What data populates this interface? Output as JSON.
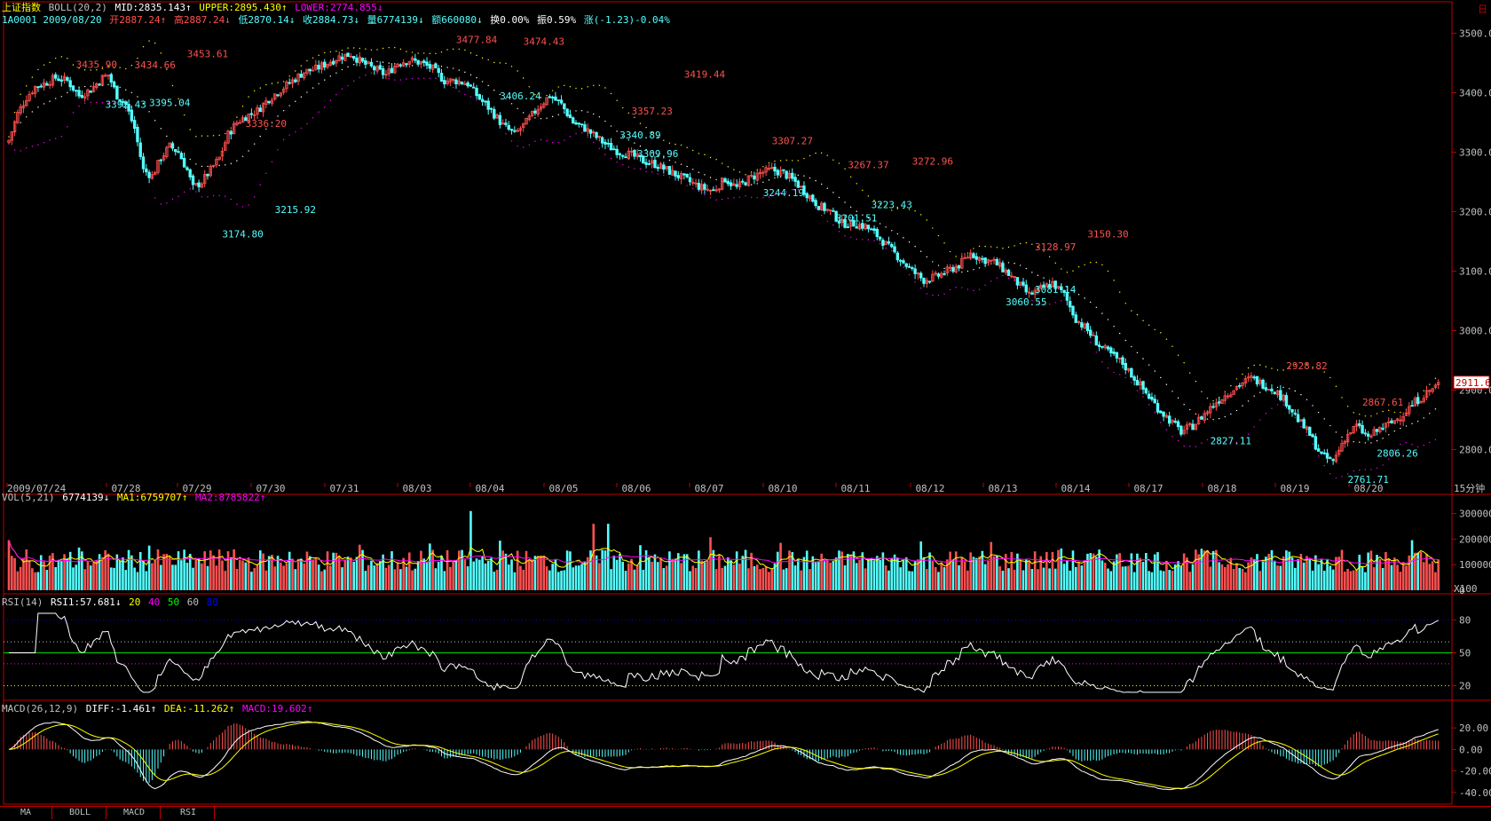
{
  "header": {
    "index_name": "上证指数",
    "boll_label": "BOLL(20,2)",
    "mid": "MID:2835.143↑",
    "upper": "UPPER:2895.430↑",
    "lower": "LOWER:2774.855↓",
    "code_date": "1A0001 2009/08/20",
    "open": "开2887.24↑",
    "high": "高2887.24↓",
    "low": "低2870.14↓",
    "close": "收2884.73↓",
    "volume": "量6774139↓",
    "amount": "额660080↓",
    "turnover": "换0.00%",
    "amplitude": "振0.59%",
    "change": "涨(-1.23)-0.04%"
  },
  "vol_header": {
    "label": "VOL(5,21)",
    "value": "6774139↓",
    "ma1": "MA1:6759707↑",
    "ma2": "MA2:8785822↑"
  },
  "rsi_header": {
    "label": "RSI(14)",
    "rsi1": "RSI1:57.681↓",
    "l20": "20",
    "l40": "40",
    "l50": "50",
    "l60": "60",
    "l80": "80"
  },
  "macd_header": {
    "label": "MACD(26,12,9)",
    "diff": "DIFF:-1.461↑",
    "dea": "DEA:-11.262↑",
    "macd": "MACD:19.602↑"
  },
  "period_label": "15分钟",
  "price_tag": "2911.6",
  "corner_button": "日",
  "vol_unit": "X100",
  "tabs": [
    "MA",
    "BOLL",
    "MACD",
    "RSI"
  ],
  "colors": {
    "up": "#ff5050",
    "down": "#54ffff",
    "mid": "#ffffff",
    "upper": "#ffff00",
    "lower": "#ff00ff",
    "frame": "#c00000"
  },
  "chart_data": [
    {
      "type": "candlestick",
      "panel": "price",
      "title": "上证指数",
      "x_dates": [
        "2009/07/24",
        "07/28",
        "07/29",
        "07/30",
        "07/31",
        "08/03",
        "08/04",
        "08/05",
        "08/06",
        "08/07",
        "08/10",
        "08/11",
        "08/12",
        "08/13",
        "08/14",
        "08/17",
        "08/18",
        "08/19",
        "08/20"
      ],
      "y_ticks": [
        "3500.0",
        "3400.0",
        "3300.0",
        "3200.0",
        "3100.0",
        "3000.0",
        "2900.0",
        "2800.0"
      ],
      "ylim": [
        2750,
        3520
      ],
      "close_path": [
        [
          0,
          3320
        ],
        [
          3,
          3365
        ],
        [
          6,
          3392
        ],
        [
          9,
          3410
        ],
        [
          12,
          3415
        ],
        [
          16,
          3425
        ],
        [
          20,
          3420
        ],
        [
          24,
          3395
        ],
        [
          28,
          3405
        ],
        [
          32,
          3425
        ],
        [
          34,
          3430
        ],
        [
          37,
          3395
        ],
        [
          40,
          3380
        ],
        [
          43,
          3340
        ],
        [
          46,
          3270
        ],
        [
          49,
          3260
        ],
        [
          52,
          3290
        ],
        [
          55,
          3310
        ],
        [
          58,
          3300
        ],
        [
          61,
          3270
        ],
        [
          63,
          3240
        ],
        [
          66,
          3250
        ],
        [
          69,
          3270
        ],
        [
          72,
          3290
        ],
        [
          75,
          3330
        ],
        [
          78,
          3350
        ],
        [
          81,
          3360
        ],
        [
          85,
          3370
        ],
        [
          89,
          3390
        ],
        [
          93,
          3405
        ],
        [
          97,
          3420
        ],
        [
          101,
          3435
        ],
        [
          105,
          3440
        ],
        [
          109,
          3450
        ],
        [
          113,
          3460
        ],
        [
          117,
          3465
        ],
        [
          121,
          3450
        ],
        [
          125,
          3440
        ],
        [
          129,
          3430
        ],
        [
          133,
          3450
        ],
        [
          137,
          3455
        ],
        [
          141,
          3450
        ],
        [
          145,
          3440
        ],
        [
          149,
          3420
        ],
        [
          153,
          3420
        ],
        [
          157,
          3415
        ],
        [
          161,
          3390
        ],
        [
          165,
          3370
        ],
        [
          169,
          3345
        ],
        [
          173,
          3330
        ],
        [
          177,
          3350
        ],
        [
          181,
          3375
        ],
        [
          185,
          3395
        ],
        [
          189,
          3380
        ],
        [
          193,
          3350
        ],
        [
          197,
          3340
        ],
        [
          201,
          3325
        ],
        [
          205,
          3310
        ],
        [
          209,
          3300
        ],
        [
          213,
          3295
        ],
        [
          217,
          3285
        ],
        [
          221,
          3280
        ],
        [
          225,
          3270
        ],
        [
          229,
          3260
        ],
        [
          233,
          3250
        ],
        [
          237,
          3240
        ],
        [
          241,
          3235
        ],
        [
          245,
          3255
        ],
        [
          249,
          3240
        ],
        [
          253,
          3255
        ],
        [
          257,
          3265
        ],
        [
          261,
          3270
        ],
        [
          265,
          3265
        ],
        [
          269,
          3250
        ],
        [
          273,
          3230
        ],
        [
          277,
          3210
        ],
        [
          281,
          3200
        ],
        [
          285,
          3180
        ],
        [
          289,
          3180
        ],
        [
          293,
          3175
        ],
        [
          297,
          3160
        ],
        [
          301,
          3140
        ],
        [
          305,
          3120
        ],
        [
          309,
          3100
        ],
        [
          313,
          3085
        ],
        [
          317,
          3090
        ],
        [
          321,
          3100
        ],
        [
          325,
          3110
        ],
        [
          329,
          3130
        ],
        [
          333,
          3120
        ],
        [
          337,
          3115
        ],
        [
          341,
          3100
        ],
        [
          345,
          3080
        ],
        [
          349,
          3060
        ],
        [
          353,
          3070
        ],
        [
          357,
          3080
        ],
        [
          361,
          3060
        ],
        [
          365,
          3020
        ],
        [
          369,
          3000
        ],
        [
          373,
          2975
        ],
        [
          377,
          2960
        ],
        [
          381,
          2945
        ],
        [
          385,
          2920
        ],
        [
          389,
          2895
        ],
        [
          393,
          2870
        ],
        [
          397,
          2850
        ],
        [
          401,
          2830
        ],
        [
          405,
          2840
        ],
        [
          409,
          2860
        ],
        [
          413,
          2880
        ],
        [
          417,
          2895
        ],
        [
          421,
          2910
        ],
        [
          425,
          2920
        ],
        [
          429,
          2910
        ],
        [
          433,
          2900
        ],
        [
          437,
          2880
        ],
        [
          441,
          2850
        ],
        [
          445,
          2825
        ],
        [
          449,
          2790
        ],
        [
          453,
          2780
        ],
        [
          457,
          2820
        ],
        [
          461,
          2840
        ],
        [
          465,
          2820
        ],
        [
          469,
          2835
        ],
        [
          473,
          2845
        ],
        [
          477,
          2860
        ],
        [
          481,
          2880
        ],
        [
          485,
          2895
        ],
        [
          489,
          2910
        ]
      ],
      "price_labels": [
        {
          "i": 30,
          "v": "3435.90",
          "c": "up"
        },
        {
          "i": 50,
          "v": "3434.66",
          "c": "up"
        },
        {
          "i": 68,
          "v": "3453.61",
          "c": "up"
        },
        {
          "i": 40,
          "v": "3392.43",
          "c": "down"
        },
        {
          "i": 55,
          "v": "3395.04",
          "c": "down"
        },
        {
          "i": 88,
          "v": "3336.20",
          "c": "up"
        },
        {
          "i": 80,
          "v": "3174.80",
          "c": "down"
        },
        {
          "i": 98,
          "v": "3215.92",
          "c": "down"
        },
        {
          "i": 160,
          "v": "3477.84",
          "c": "up"
        },
        {
          "i": 183,
          "v": "3474.43",
          "c": "up"
        },
        {
          "i": 175,
          "v": "3406.24",
          "c": "down"
        },
        {
          "i": 238,
          "v": "3419.44",
          "c": "up"
        },
        {
          "i": 220,
          "v": "3357.23",
          "c": "up"
        },
        {
          "i": 216,
          "v": "3340.89",
          "c": "down"
        },
        {
          "i": 222,
          "v": "3309.96",
          "c": "down"
        },
        {
          "i": 268,
          "v": "3307.27",
          "c": "up"
        },
        {
          "i": 265,
          "v": "3244.19",
          "c": "down"
        },
        {
          "i": 294,
          "v": "3267.37",
          "c": "up"
        },
        {
          "i": 316,
          "v": "3272.96",
          "c": "up"
        },
        {
          "i": 290,
          "v": "3201.51",
          "c": "down"
        },
        {
          "i": 302,
          "v": "3223.43",
          "c": "down"
        },
        {
          "i": 358,
          "v": "3128.97",
          "c": "up"
        },
        {
          "i": 376,
          "v": "3150.30",
          "c": "up"
        },
        {
          "i": 348,
          "v": "3060.55",
          "c": "down"
        },
        {
          "i": 358,
          "v": "3081.14",
          "c": "down"
        },
        {
          "i": 444,
          "v": "2928.82",
          "c": "up"
        },
        {
          "i": 418,
          "v": "2827.11",
          "c": "down"
        },
        {
          "i": 470,
          "v": "2867.61",
          "c": "up"
        },
        {
          "i": 465,
          "v": "2761.71",
          "c": "down"
        },
        {
          "i": 475,
          "v": "2806.26",
          "c": "down"
        }
      ]
    },
    {
      "type": "bar",
      "panel": "volume",
      "title": "VOL(5,21)",
      "y_ticks": [
        "300000",
        "200000",
        "100000",
        "0"
      ],
      "ylim": [
        0,
        330000
      ]
    },
    {
      "type": "line",
      "panel": "rsi",
      "title": "RSI(14)",
      "y_ticks": [
        "80",
        "50",
        "20"
      ],
      "ylim": [
        10,
        90
      ]
    },
    {
      "type": "line",
      "panel": "macd",
      "title": "MACD(26,12,9)",
      "y_ticks": [
        "20.00",
        "0.00",
        "-20.00",
        "-40.00"
      ],
      "ylim": [
        -50,
        30
      ]
    }
  ]
}
